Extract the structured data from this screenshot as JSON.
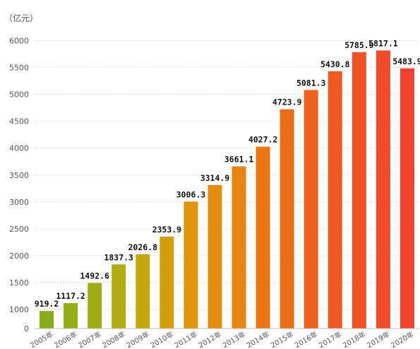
{
  "chart_data": {
    "type": "bar",
    "title": "",
    "xlabel": "",
    "ylabel": "",
    "unit_label": "（亿元）",
    "categories": [
      "2005年",
      "2006年",
      "2007年",
      "2008年",
      "2009年",
      "2010年",
      "2011年",
      "2012年",
      "2013年",
      "2014年",
      "2015年",
      "2016年",
      "2017年",
      "2018年",
      "2019年",
      "2020年"
    ],
    "values": [
      919.2,
      1117.2,
      1492.6,
      1837.3,
      2026.8,
      2353.9,
      3006.3,
      3314.9,
      3661.1,
      4027.2,
      4723.9,
      5081.3,
      5430.8,
      5785.9,
      5817.1,
      5483.9
    ],
    "data_labels": [
      "919.2",
      "1117.2",
      "1492.6",
      "1837.3",
      "2026.8",
      "2353.9",
      "3006.3",
      "3314.9",
      "3661.1",
      "4027.2",
      "4723.9",
      "5081.3",
      "5430.8",
      "5785.9",
      "5817.1",
      "5483.9"
    ],
    "y_ticks": [
      0,
      1000,
      1500,
      2000,
      2500,
      3000,
      3500,
      4000,
      4500,
      5000,
      5500,
      6000
    ],
    "y_tick_labels": [
      "0",
      "1000",
      "1500",
      "2000",
      "2500",
      "3000",
      "3500",
      "4000",
      "4500",
      "5000",
      "5500",
      "6000"
    ],
    "ylim": [
      0,
      6500
    ],
    "y_axis_break": [
      0,
      1000
    ],
    "grid": true,
    "legend": "none",
    "colors": [
      "#8aac1c",
      "#93ae17",
      "#a1ad14",
      "#b0ab10",
      "#c4a60d",
      "#d49e0b",
      "#df960b",
      "#e48e0d",
      "#e6840f",
      "#ea7812",
      "#ec6d17",
      "#ee621c",
      "#f05a21",
      "#f15226",
      "#f24a2a",
      "#f2402e"
    ]
  }
}
